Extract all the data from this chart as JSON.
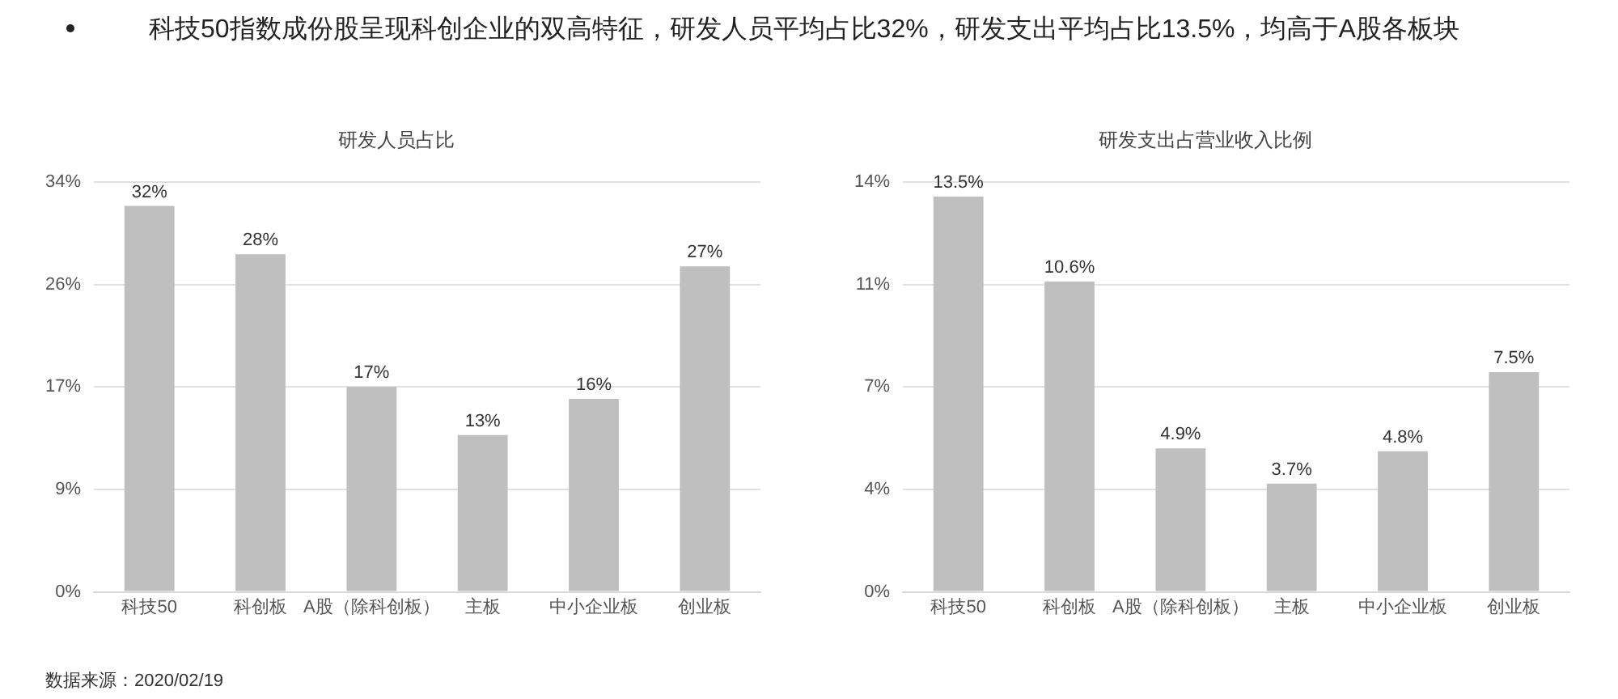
{
  "chart_data": [
    {
      "type": "bar",
      "title": "研发人员占比",
      "categories": [
        "科技50",
        "科创板",
        "A股（除科创板）",
        "主板",
        "中小企业板",
        "创业板"
      ],
      "values": [
        32,
        28,
        17,
        13,
        16,
        27
      ],
      "color": "#bfbfbf",
      "value_labels": [
        "32%",
        "28%",
        "17%",
        "13%",
        "16%",
        "27%"
      ],
      "ylim": [
        0,
        34
      ],
      "yticks": [
        {
          "value": 0,
          "label": "0%"
        },
        {
          "value": 8.5,
          "label": "9%"
        },
        {
          "value": 17,
          "label": "17%"
        },
        {
          "value": 25.5,
          "label": "26%"
        },
        {
          "value": 34,
          "label": "34%"
        }
      ],
      "grid": "y",
      "annotations": [
        "科技50指数成份股呈现科创企业的双高特征，研发人员平均占比32%，研发支出平均占比13.5%，均高于A股各板块",
        "数据来源：2020/02/19"
      ]
    },
    {
      "type": "bar",
      "title": "研发支出占营业收入比例",
      "categories": [
        "科技50",
        "科创板",
        "A股（除科创板）",
        "主板",
        "中小企业板",
        "创业板"
      ],
      "values": [
        13.5,
        10.6,
        4.9,
        3.7,
        4.8,
        7.5
      ],
      "color": "#bfbfbf",
      "value_labels": [
        "13.5%",
        "10.6%",
        "4.9%",
        "3.7%",
        "4.8%",
        "7.5%"
      ],
      "ylim": [
        0,
        14
      ],
      "yticks": [
        {
          "value": 0,
          "label": "0%"
        },
        {
          "value": 3.5,
          "label": "4%"
        },
        {
          "value": 7,
          "label": "7%"
        },
        {
          "value": 10.5,
          "label": "11%"
        },
        {
          "value": 14,
          "label": "14%"
        }
      ],
      "grid": "y"
    }
  ]
}
